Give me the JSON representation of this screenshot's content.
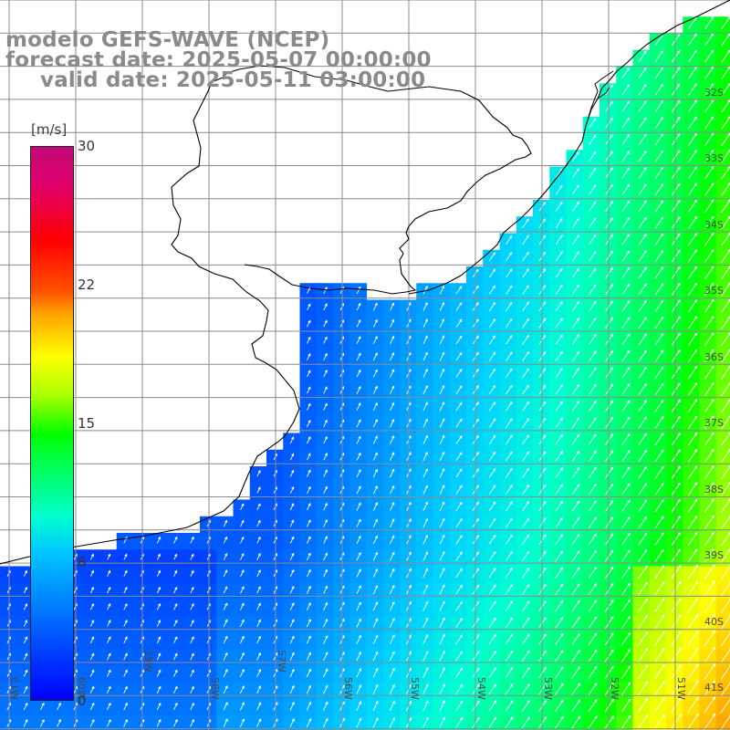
{
  "title": {
    "model": "modelo GEFS-WAVE (NCEP)",
    "forecast": "forecast date: 2025-05-07 00:00:00",
    "valid": "valid date: 2025-05-11 03:00:00"
  },
  "colorbar": {
    "unit": "[m/s]",
    "ticks": [
      "30",
      "22",
      "15",
      "8",
      "0"
    ],
    "min": 0,
    "max": 30
  },
  "axes": {
    "latitude_labels": [
      "32S",
      "33S",
      "34S",
      "35S",
      "36S",
      "37S",
      "38S",
      "39S",
      "40S",
      "41S"
    ],
    "longitude_labels": [
      "61W",
      "60W",
      "59W",
      "58W",
      "57W",
      "56W",
      "55W",
      "54W",
      "53W",
      "52W",
      "51W"
    ]
  },
  "colors": {
    "land": "#ffffff",
    "coastline": "#000000",
    "grid": "#8c8c8c",
    "arrows": "#ffffff",
    "title_text": "#8a8a8a"
  },
  "map_data": {
    "variable": "wind speed and direction",
    "units": "m/s",
    "region": "Rio de la Plata and South Atlantic coast",
    "lat_range": [
      "32S",
      "41S"
    ],
    "lon_range": [
      "61W",
      "51W"
    ]
  }
}
